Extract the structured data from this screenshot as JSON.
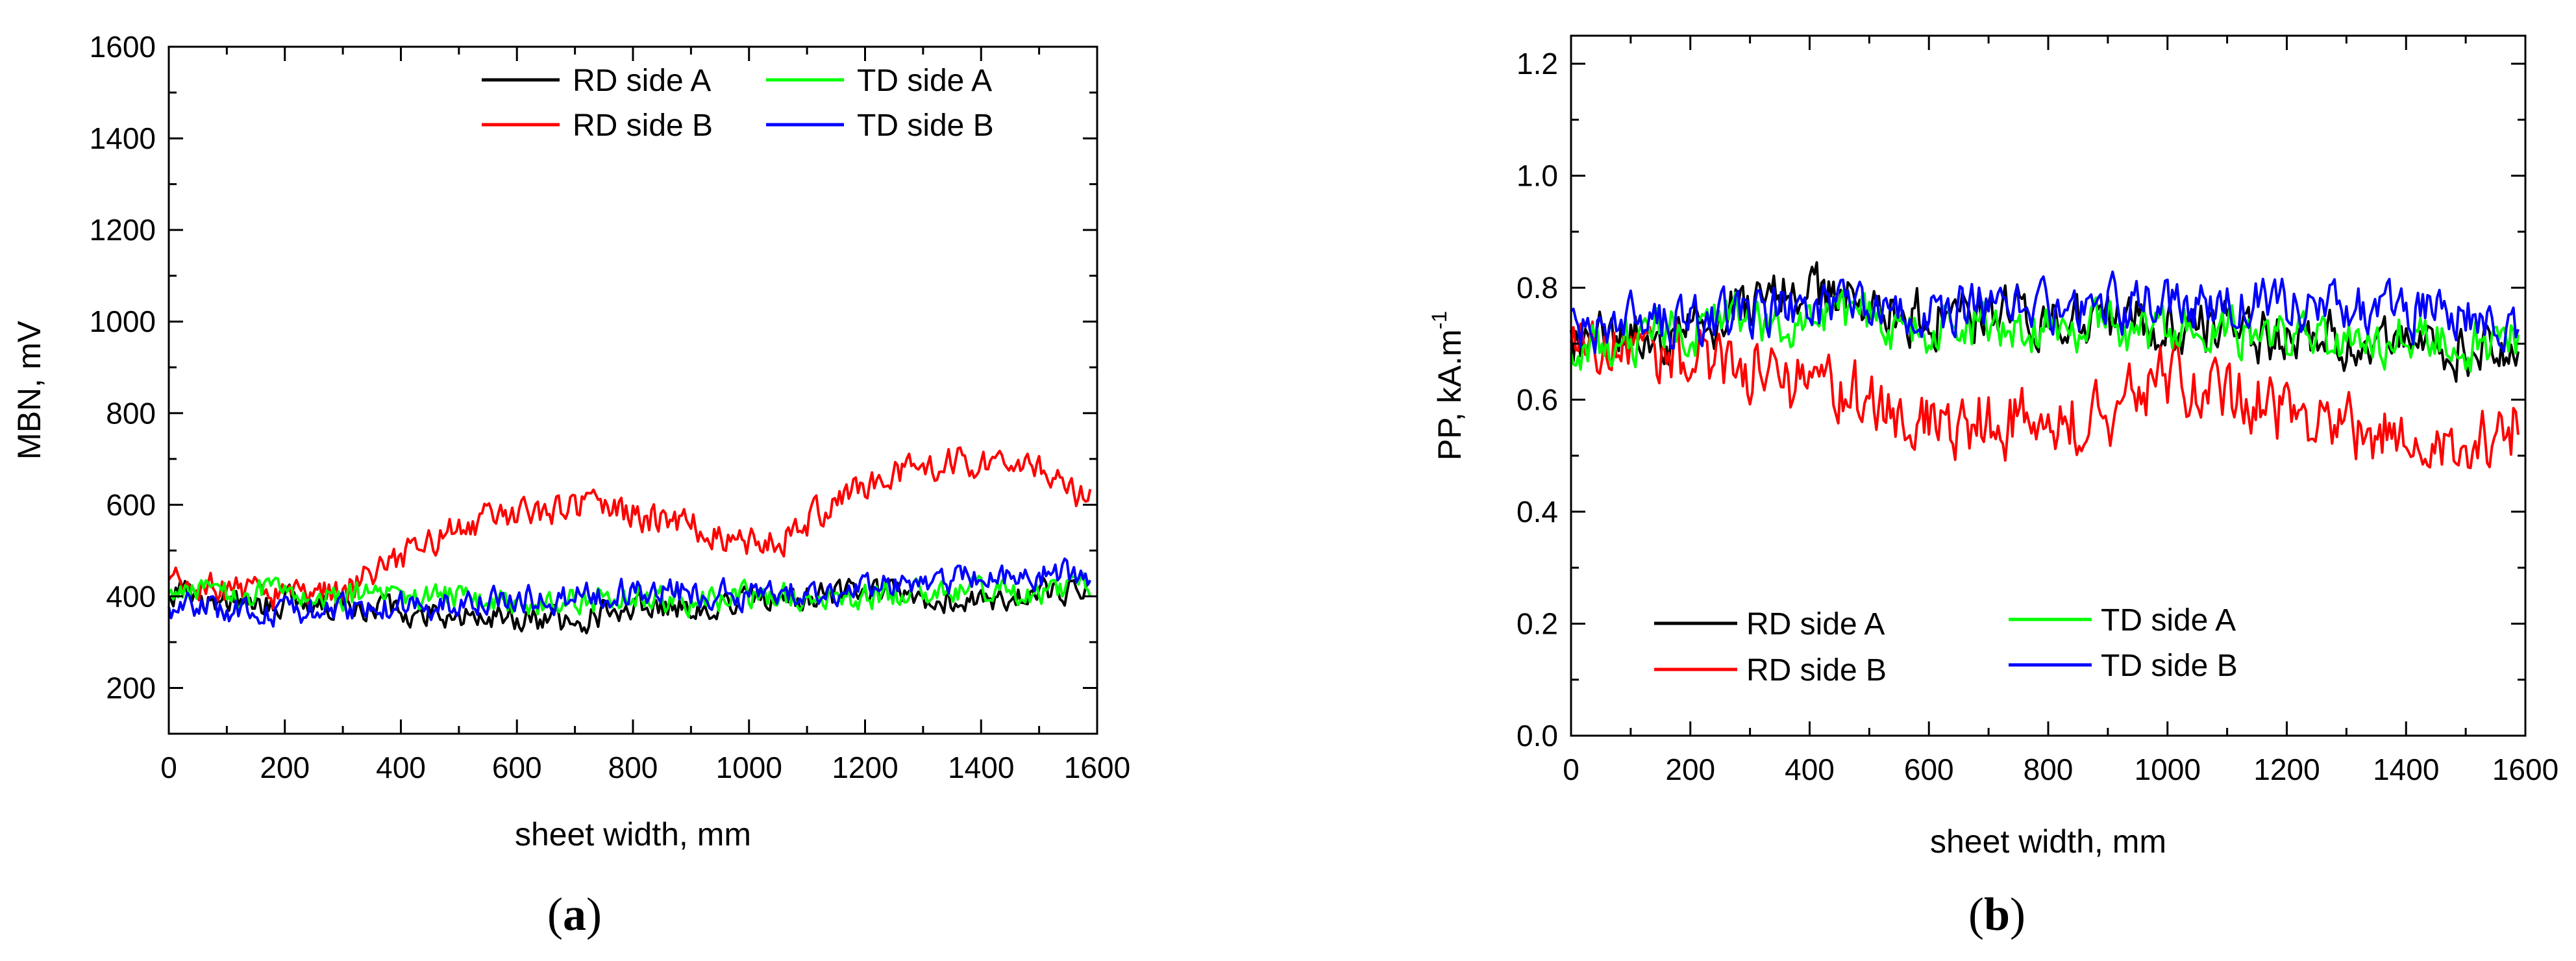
{
  "figure": {
    "panel_a_label": {
      "open": "(",
      "letter": "a",
      "close": ")"
    },
    "panel_b_label": {
      "open": "(",
      "letter": "b",
      "close": ")"
    }
  },
  "chart_data": [
    {
      "id": "a",
      "type": "line",
      "xlabel": "sheet width, mm",
      "ylabel": "MBN, mV",
      "xlim": [
        0,
        1600
      ],
      "ylim": [
        100,
        1600
      ],
      "x_ticks": [
        0,
        200,
        400,
        600,
        800,
        1000,
        1200,
        1400,
        1600
      ],
      "y_ticks": [
        200,
        400,
        600,
        800,
        1000,
        1200,
        1400,
        1600
      ],
      "x_tick_labels": [
        "0",
        "200",
        "400",
        "600",
        "800",
        "1000",
        "1200",
        "1400",
        "1600"
      ],
      "y_tick_labels": [
        "200",
        "400",
        "600",
        "800",
        "1000",
        "1200",
        "1400",
        "1600"
      ],
      "legend_position": "top-right",
      "series": [
        {
          "name": "RD side A",
          "color": "#000000",
          "noise": 30,
          "anchors": [
            [
              0,
              415
            ],
            [
              100,
              390
            ],
            [
              200,
              385
            ],
            [
              300,
              380
            ],
            [
              400,
              375
            ],
            [
              500,
              360
            ],
            [
              600,
              355
            ],
            [
              700,
              345
            ],
            [
              800,
              385
            ],
            [
              900,
              380
            ],
            [
              1000,
              400
            ],
            [
              1100,
              395
            ],
            [
              1200,
              405
            ],
            [
              1300,
              400
            ],
            [
              1400,
              395
            ],
            [
              1500,
              400
            ],
            [
              1590,
              420
            ]
          ]
        },
        {
          "name": "RD side B",
          "color": "#ff0000",
          "noise": 35,
          "anchors": [
            [
              0,
              420
            ],
            [
              100,
              410
            ],
            [
              200,
              410
            ],
            [
              300,
              410
            ],
            [
              350,
              440
            ],
            [
              400,
              490
            ],
            [
              450,
              510
            ],
            [
              500,
              560
            ],
            [
              550,
              570
            ],
            [
              600,
              580
            ],
            [
              650,
              590
            ],
            [
              700,
              600
            ],
            [
              750,
              590
            ],
            [
              800,
              580
            ],
            [
              850,
              570
            ],
            [
              900,
              560
            ],
            [
              950,
              540
            ],
            [
              1000,
              510
            ],
            [
              1050,
              520
            ],
            [
              1100,
              560
            ],
            [
              1150,
              600
            ],
            [
              1200,
              640
            ],
            [
              1250,
              660
            ],
            [
              1300,
              670
            ],
            [
              1350,
              690
            ],
            [
              1400,
              700
            ],
            [
              1450,
              700
            ],
            [
              1500,
              680
            ],
            [
              1550,
              640
            ],
            [
              1590,
              600
            ]
          ]
        },
        {
          "name": "TD side A",
          "color": "#00ff00",
          "noise": 30,
          "anchors": [
            [
              0,
              420
            ],
            [
              100,
              400
            ],
            [
              200,
              405
            ],
            [
              300,
              400
            ],
            [
              400,
              400
            ],
            [
              500,
              395
            ],
            [
              600,
              385
            ],
            [
              700,
              385
            ],
            [
              800,
              400
            ],
            [
              900,
              390
            ],
            [
              1000,
              395
            ],
            [
              1100,
              400
            ],
            [
              1200,
              400
            ],
            [
              1300,
              410
            ],
            [
              1400,
              405
            ],
            [
              1500,
              410
            ],
            [
              1590,
              420
            ]
          ]
        },
        {
          "name": "TD side B",
          "color": "#0000ff",
          "noise": 30,
          "anchors": [
            [
              0,
              380
            ],
            [
              100,
              370
            ],
            [
              200,
              370
            ],
            [
              300,
              370
            ],
            [
              400,
              380
            ],
            [
              500,
              385
            ],
            [
              600,
              390
            ],
            [
              700,
              400
            ],
            [
              800,
              415
            ],
            [
              900,
              410
            ],
            [
              1000,
              400
            ],
            [
              1100,
              415
            ],
            [
              1200,
              420
            ],
            [
              1300,
              435
            ],
            [
              1400,
              440
            ],
            [
              1500,
              450
            ],
            [
              1590,
              440
            ]
          ]
        }
      ]
    },
    {
      "id": "b",
      "type": "line",
      "xlabel": "sheet width, mm",
      "ylabel_main": "PP, kA.m",
      "ylabel_sup": "-1",
      "xlim": [
        0,
        1600
      ],
      "ylim": [
        0.0,
        1.25
      ],
      "x_ticks": [
        0,
        200,
        400,
        600,
        800,
        1000,
        1200,
        1400,
        1600
      ],
      "y_ticks": [
        0.0,
        0.2,
        0.4,
        0.6,
        0.8,
        1.0,
        1.2
      ],
      "x_tick_labels": [
        "0",
        "200",
        "400",
        "600",
        "800",
        "1000",
        "1200",
        "1400",
        "1600"
      ],
      "y_tick_labels": [
        "0.0",
        "0.2",
        "0.4",
        "0.6",
        "0.8",
        "1.0",
        "1.2"
      ],
      "legend_position": "bottom-left",
      "series": [
        {
          "name": "RD side A",
          "color": "#000000",
          "noise": 0.05,
          "anchors": [
            [
              0,
              0.7
            ],
            [
              100,
              0.71
            ],
            [
              200,
              0.71
            ],
            [
              300,
              0.78
            ],
            [
              400,
              0.79
            ],
            [
              500,
              0.76
            ],
            [
              600,
              0.75
            ],
            [
              700,
              0.76
            ],
            [
              800,
              0.75
            ],
            [
              900,
              0.74
            ],
            [
              1000,
              0.73
            ],
            [
              1100,
              0.72
            ],
            [
              1200,
              0.72
            ],
            [
              1300,
              0.71
            ],
            [
              1400,
              0.71
            ],
            [
              1500,
              0.69
            ],
            [
              1590,
              0.7
            ]
          ]
        },
        {
          "name": "RD side B",
          "color": "#ff0000",
          "noise": 0.06,
          "anchors": [
            [
              0,
              0.69
            ],
            [
              100,
              0.68
            ],
            [
              200,
              0.68
            ],
            [
              300,
              0.66
            ],
            [
              400,
              0.62
            ],
            [
              500,
              0.6
            ],
            [
              600,
              0.57
            ],
            [
              700,
              0.56
            ],
            [
              800,
              0.56
            ],
            [
              900,
              0.58
            ],
            [
              1000,
              0.63
            ],
            [
              1100,
              0.62
            ],
            [
              1200,
              0.58
            ],
            [
              1300,
              0.55
            ],
            [
              1400,
              0.54
            ],
            [
              1500,
              0.52
            ],
            [
              1590,
              0.56
            ]
          ]
        },
        {
          "name": "TD side A",
          "color": "#00ff00",
          "noise": 0.045,
          "anchors": [
            [
              0,
              0.7
            ],
            [
              100,
              0.71
            ],
            [
              200,
              0.73
            ],
            [
              300,
              0.74
            ],
            [
              400,
              0.74
            ],
            [
              500,
              0.74
            ],
            [
              600,
              0.73
            ],
            [
              700,
              0.74
            ],
            [
              800,
              0.73
            ],
            [
              900,
              0.72
            ],
            [
              1000,
              0.72
            ],
            [
              1100,
              0.72
            ],
            [
              1200,
              0.71
            ],
            [
              1300,
              0.7
            ],
            [
              1400,
              0.71
            ],
            [
              1500,
              0.7
            ],
            [
              1590,
              0.71
            ]
          ]
        },
        {
          "name": "TD side B",
          "color": "#0000ff",
          "noise": 0.045,
          "anchors": [
            [
              0,
              0.73
            ],
            [
              100,
              0.74
            ],
            [
              200,
              0.74
            ],
            [
              300,
              0.75
            ],
            [
              400,
              0.76
            ],
            [
              500,
              0.76
            ],
            [
              600,
              0.75
            ],
            [
              700,
              0.77
            ],
            [
              800,
              0.77
            ],
            [
              900,
              0.77
            ],
            [
              1000,
              0.77
            ],
            [
              1100,
              0.77
            ],
            [
              1200,
              0.77
            ],
            [
              1300,
              0.76
            ],
            [
              1400,
              0.75
            ],
            [
              1500,
              0.75
            ],
            [
              1590,
              0.74
            ]
          ]
        }
      ]
    }
  ]
}
